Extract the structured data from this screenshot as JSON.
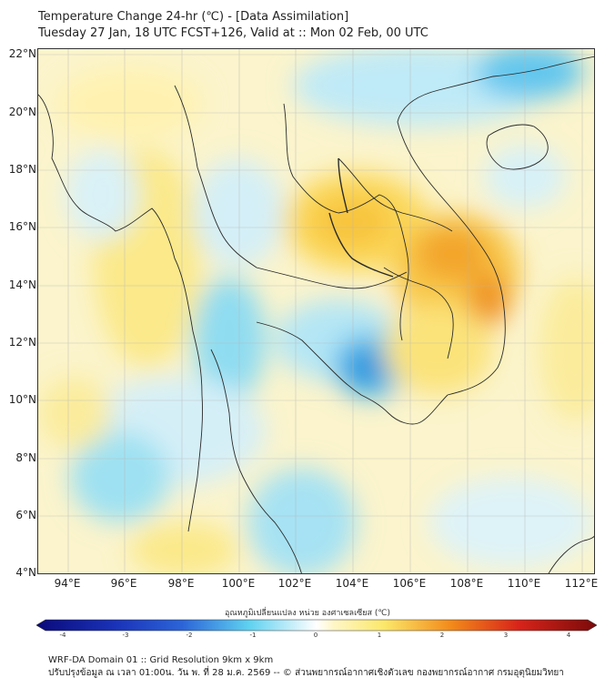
{
  "title": {
    "line1": "Temperature Change 24-hr (℃) - [Data Assimilation]",
    "line2": "Tuesday 27 Jan, 18 UTC FCST+126, Valid at :: Mon 02 Feb, 00 UTC"
  },
  "map": {
    "lat_labels": [
      "22°N",
      "20°N",
      "18°N",
      "16°N",
      "14°N",
      "12°N",
      "10°N",
      "8°N",
      "6°N",
      "4°N"
    ],
    "lon_labels": [
      "94°E",
      "96°E",
      "98°E",
      "100°E",
      "102°E",
      "104°E",
      "106°E",
      "108°E",
      "110°E",
      "112°E"
    ],
    "field": "24-hr temperature change",
    "features": [
      "warm-anomaly-laos-vietnam",
      "cool-anomaly-cambodia",
      "cool-anomaly-gulf-of-tonkin"
    ]
  },
  "colorbar": {
    "label": "อุณหภูมิเปลี่ยนแปลง หน่วย องศาเซลเซียส (℃)",
    "ticks": [
      "-4",
      "-3",
      "-2",
      "-1",
      "0",
      "1",
      "2",
      "3",
      "4"
    ],
    "min": -4,
    "max": 4,
    "colors": {
      "cold_extreme": "#0a0a7a",
      "cold": "#2c64d8",
      "cool": "#5fd2f0",
      "neutral": "#ffffff",
      "warm": "#fbe86a",
      "hot": "#f28a1a",
      "hot_extreme": "#7a0a0a"
    }
  },
  "footer": {
    "line1": "WRF-DA Domain 01 :: Grid Resolution 9km x 9km",
    "line2": "ปรับปรุงข้อมูล ณ เวลา 01:00น. วัน พ. ที่ 28 ม.ค. 2569 -- © ส่วนพยากรณ์อากาศเชิงตัวเลข กองพยากรณ์อากาศ กรมอุตุนิยมวิทยา"
  }
}
